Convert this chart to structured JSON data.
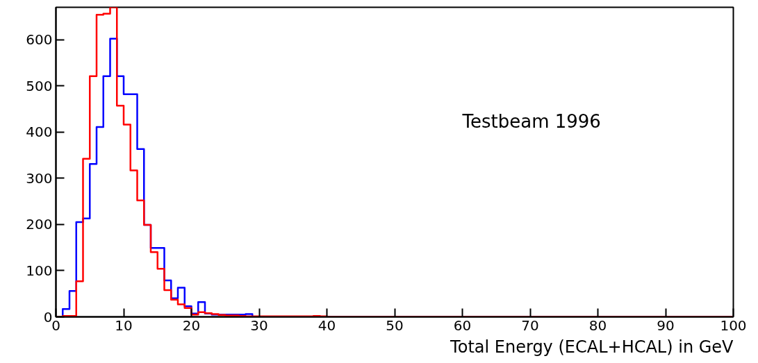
{
  "chart_data": {
    "type": "histogram",
    "xlabel": "Total Energy (ECAL+HCAL) in GeV",
    "annotations": [
      "Testbeam 1996"
    ],
    "bins": [
      0,
      1,
      2,
      3,
      4,
      5,
      6,
      7,
      8,
      9,
      10,
      11,
      12,
      13,
      14,
      15,
      16,
      17,
      18,
      19,
      20,
      21,
      22,
      23,
      24,
      25,
      26,
      27,
      28,
      29,
      30,
      31,
      32,
      33,
      34,
      35,
      36,
      37,
      38,
      39,
      40,
      41,
      42,
      43,
      44,
      45,
      46,
      47,
      48,
      49,
      50,
      51,
      52,
      53,
      54,
      55,
      56,
      57,
      58,
      59,
      60,
      61,
      62,
      63,
      64,
      65,
      66,
      67,
      68,
      69,
      70,
      71,
      72,
      73,
      74,
      75,
      76,
      77,
      78,
      79,
      80,
      81,
      82,
      83,
      84,
      85,
      86,
      87,
      88,
      89,
      90,
      91,
      92,
      93,
      94,
      95,
      96,
      97,
      98,
      99,
      100
    ],
    "series": [
      {
        "color": "#0000ff",
        "values": [
          0,
          17,
          56,
          205,
          213,
          331,
          411,
          521,
          602,
          521,
          482,
          482,
          363,
          199,
          149,
          149,
          79,
          40,
          63,
          23,
          7,
          32,
          7,
          5,
          5,
          5,
          5,
          5,
          6,
          0,
          0,
          0,
          0,
          0,
          0,
          0,
          0,
          0,
          0,
          0,
          0,
          0,
          0,
          0,
          0,
          0,
          0,
          0,
          0,
          0,
          0,
          0,
          0,
          0,
          0,
          0,
          0,
          0,
          0,
          0,
          0,
          0,
          0,
          0,
          0,
          0,
          0,
          0,
          0,
          0,
          0,
          0,
          0,
          0,
          0,
          0,
          0,
          0,
          0,
          0,
          0,
          0,
          0,
          0,
          0,
          0,
          0,
          0,
          0,
          0,
          0,
          0,
          0,
          0,
          0,
          0,
          0,
          0,
          0,
          0
        ]
      },
      {
        "color": "#ff0000",
        "values": [
          0,
          2,
          2,
          77,
          342,
          521,
          654,
          656,
          670,
          457,
          416,
          317,
          252,
          199,
          140,
          104,
          58,
          37,
          27,
          19,
          5,
          10,
          8,
          6,
          4,
          3,
          3,
          2,
          1,
          1,
          1,
          1,
          1,
          1,
          1,
          1,
          1,
          1,
          2,
          1,
          0,
          0,
          0,
          0,
          0,
          0,
          0,
          0,
          0,
          0,
          0,
          0,
          0,
          0,
          0,
          0,
          0,
          0,
          0,
          0,
          0,
          0,
          0,
          0,
          0,
          0,
          0,
          0,
          0,
          0,
          0,
          0,
          0,
          0,
          0,
          0,
          0,
          0,
          0,
          0,
          0,
          0,
          0,
          0,
          0,
          0,
          0,
          0,
          0,
          0,
          0,
          0,
          0,
          0,
          0,
          0,
          0,
          0,
          0,
          0
        ]
      }
    ],
    "xlim": [
      0,
      100
    ],
    "ylim": [
      0,
      670
    ],
    "xticks": [
      0,
      10,
      20,
      30,
      40,
      50,
      60,
      70,
      80,
      90,
      100
    ],
    "yticks": [
      0,
      100,
      200,
      300,
      400,
      500,
      600
    ],
    "grid": false
  }
}
